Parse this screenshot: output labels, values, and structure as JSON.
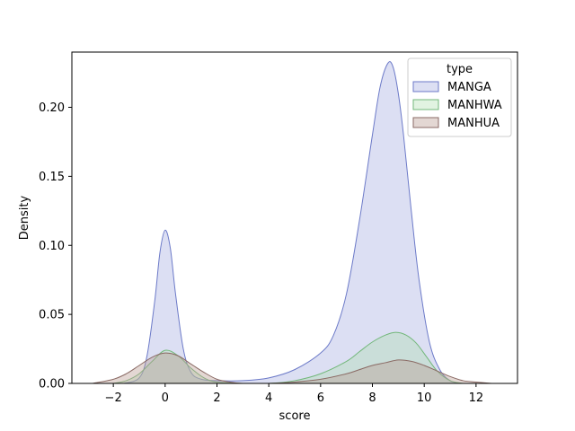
{
  "chart_data": {
    "type": "area",
    "xlabel": "score",
    "ylabel": "Density",
    "xlim": [
      -3.6,
      13.6
    ],
    "ylim": [
      0,
      0.24
    ],
    "xticks": [
      -2,
      0,
      2,
      4,
      6,
      8,
      10,
      12
    ],
    "xtick_labels": [
      "−2",
      "0",
      "2",
      "4",
      "6",
      "8",
      "10",
      "12"
    ],
    "yticks": [
      0.0,
      0.05,
      0.1,
      0.15,
      0.2
    ],
    "ytick_labels": [
      "0.00",
      "0.05",
      "0.10",
      "0.15",
      "0.20"
    ],
    "legend": {
      "title": "type",
      "placement": "top-right"
    },
    "series": [
      {
        "name": "MANGA",
        "fill": "#8c96d6",
        "line": "#6c7ac8",
        "fill_opacity": 0.3,
        "x": [
          -1.6,
          -1.0,
          -0.7,
          -0.4,
          -0.2,
          0.0,
          0.2,
          0.4,
          0.7,
          1.0,
          1.4,
          2.0,
          3.0,
          4.0,
          5.0,
          6.0,
          6.5,
          7.0,
          7.5,
          8.0,
          8.3,
          8.6,
          8.8,
          9.0,
          9.2,
          9.5,
          9.8,
          10.2,
          10.6,
          11.0,
          11.4
        ],
        "y": [
          0.0,
          0.004,
          0.02,
          0.06,
          0.095,
          0.111,
          0.098,
          0.065,
          0.025,
          0.008,
          0.003,
          0.002,
          0.002,
          0.004,
          0.01,
          0.022,
          0.035,
          0.065,
          0.118,
          0.18,
          0.215,
          0.232,
          0.229,
          0.21,
          0.18,
          0.125,
          0.075,
          0.03,
          0.01,
          0.002,
          0.0
        ]
      },
      {
        "name": "MANHWA",
        "fill": "#a8dcaa",
        "line": "#72b77a",
        "fill_opacity": 0.35,
        "x": [
          -2.0,
          -1.5,
          -1.0,
          -0.5,
          0.0,
          0.5,
          1.0,
          1.5,
          2.0,
          3.0,
          4.0,
          5.0,
          6.0,
          7.0,
          7.5,
          8.0,
          8.5,
          8.9,
          9.3,
          9.7,
          10.1,
          10.5,
          11.0,
          11.5
        ],
        "y": [
          0.0,
          0.002,
          0.007,
          0.016,
          0.024,
          0.02,
          0.011,
          0.004,
          0.001,
          0.0,
          0.0,
          0.002,
          0.007,
          0.016,
          0.023,
          0.03,
          0.035,
          0.037,
          0.035,
          0.029,
          0.019,
          0.009,
          0.002,
          0.0
        ]
      },
      {
        "name": "MANHUA",
        "fill": "#b89a92",
        "line": "#8a6a64",
        "fill_opacity": 0.4,
        "x": [
          -2.8,
          -2.0,
          -1.5,
          -1.0,
          -0.5,
          0.0,
          0.5,
          1.0,
          1.5,
          2.0,
          2.5,
          3.0,
          4.0,
          5.0,
          6.0,
          7.0,
          7.5,
          8.0,
          8.5,
          9.0,
          9.5,
          10.0,
          10.5,
          11.0,
          11.5,
          12.0,
          12.6
        ],
        "y": [
          0.0,
          0.003,
          0.007,
          0.013,
          0.019,
          0.022,
          0.02,
          0.014,
          0.008,
          0.003,
          0.001,
          0.0,
          0.0,
          0.001,
          0.003,
          0.007,
          0.01,
          0.013,
          0.015,
          0.017,
          0.016,
          0.013,
          0.009,
          0.005,
          0.002,
          0.001,
          0.0
        ]
      }
    ]
  }
}
